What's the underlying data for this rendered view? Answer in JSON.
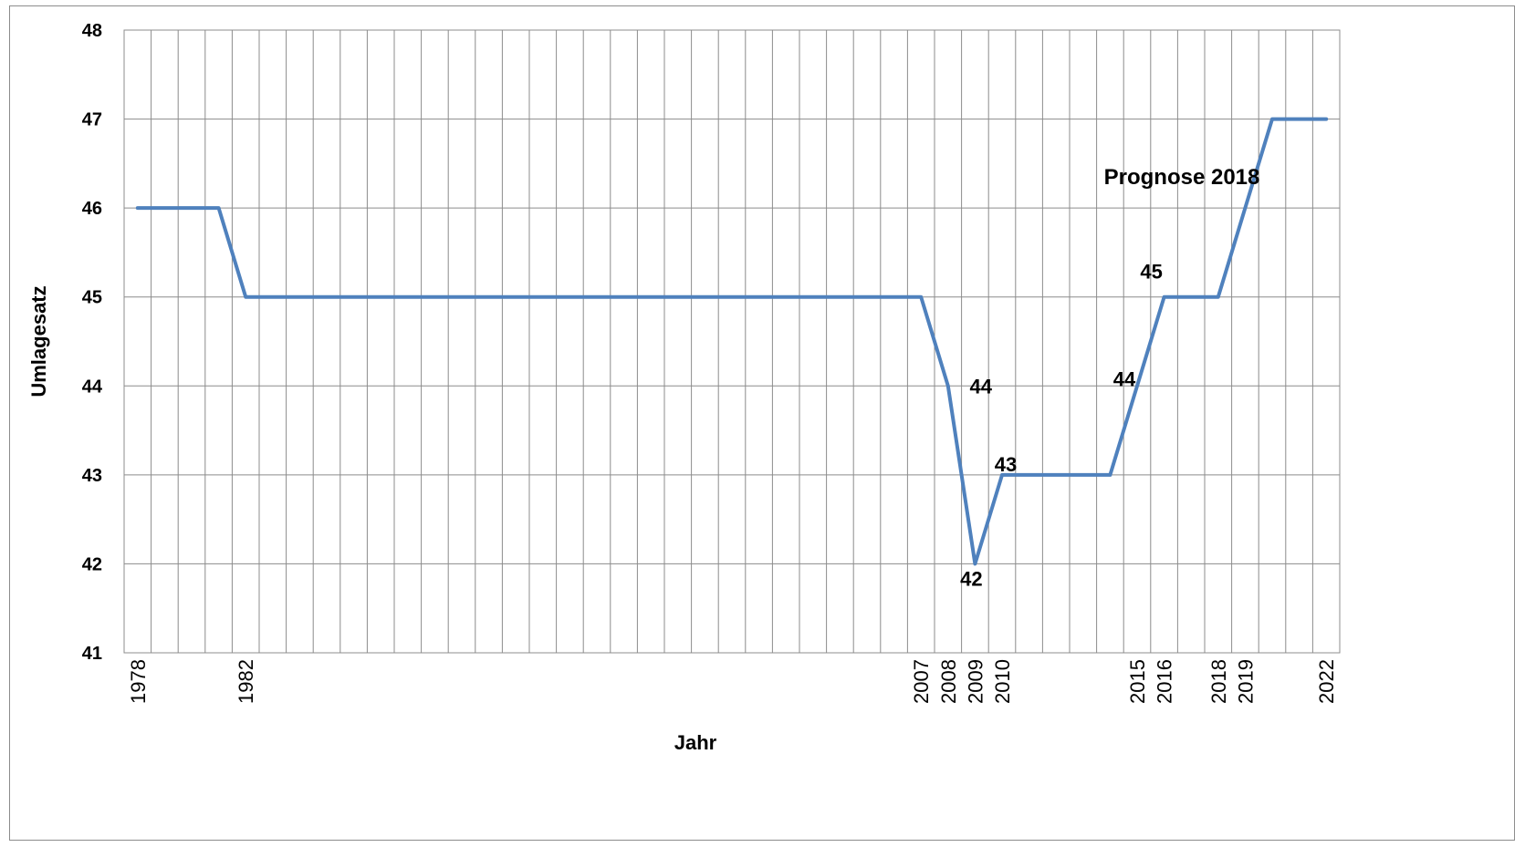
{
  "chart_data": {
    "type": "line",
    "title": "",
    "xlabel": "Jahr",
    "ylabel": "Umlagesatz",
    "ylim": [
      41,
      48
    ],
    "yticks": [
      41,
      42,
      43,
      44,
      45,
      46,
      47,
      48
    ],
    "x": [
      "1978",
      "1979",
      "1980",
      "1981",
      "1982",
      "1983",
      "1984",
      "1985",
      "1986",
      "1987",
      "1988",
      "1989",
      "1990",
      "1991",
      "1992",
      "1993",
      "1994",
      "1995",
      "1996",
      "1997",
      "1998",
      "1999",
      "2000",
      "2001",
      "2002",
      "2003",
      "2004",
      "2005",
      "2006",
      "2007",
      "2008",
      "2009",
      "2010",
      "2011",
      "2012",
      "2013",
      "2014",
      "2015",
      "2016",
      "2017",
      "2018",
      "2019",
      "2020",
      "2021",
      "2022"
    ],
    "x_tick_labels": [
      "1978",
      "",
      "",
      "",
      "1982",
      "",
      "",
      "",
      "",
      "",
      "",
      "",
      "",
      "",
      "",
      "",
      "",
      "",
      "",
      "",
      "",
      "",
      "",
      "",
      "",
      "",
      "",
      "",
      "",
      "2007",
      "2008",
      "2009",
      "2010",
      "",
      "",
      "",
      "",
      "2015",
      "2016",
      "",
      "2018",
      "2019",
      "",
      "",
      "2022"
    ],
    "series": [
      {
        "color": "#4f81bd",
        "values": [
          46,
          46,
          46,
          46,
          45,
          45,
          45,
          45,
          45,
          45,
          45,
          45,
          45,
          45,
          45,
          45,
          45,
          45,
          45,
          45,
          45,
          45,
          45,
          45,
          45,
          45,
          45,
          45,
          45,
          45,
          44,
          42,
          43,
          43,
          43,
          43,
          43,
          44,
          45,
          45,
          45,
          46,
          47,
          47,
          47
        ]
      }
    ],
    "data_labels": [
      {
        "x": "2008",
        "text": "44"
      },
      {
        "x": "2009",
        "text": "42"
      },
      {
        "x": "2010",
        "text": "43"
      },
      {
        "x": "2015",
        "text": "44"
      },
      {
        "x": "2016",
        "text": "45"
      }
    ],
    "annotations": [
      {
        "text": "Prognose 2018"
      }
    ],
    "grid": true,
    "legend": "none"
  }
}
